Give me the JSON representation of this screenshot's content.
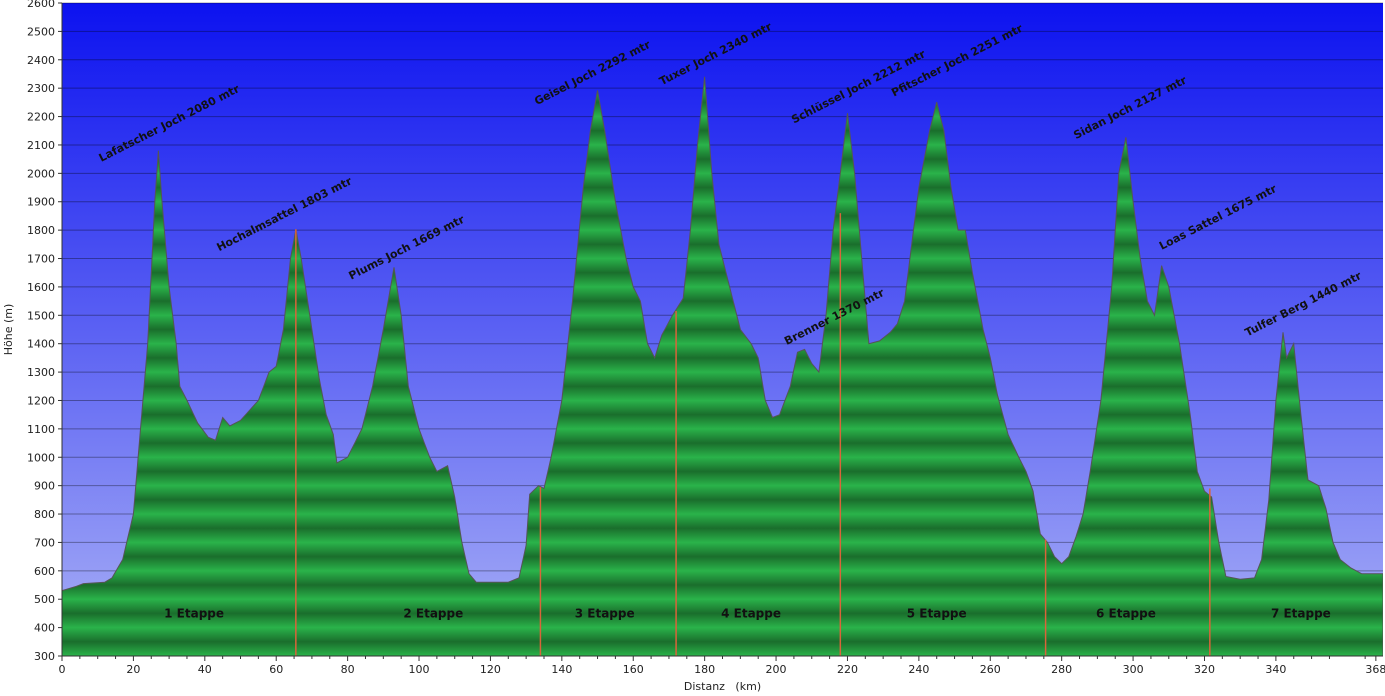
{
  "chart_data": {
    "type": "area",
    "xlabel": "Distanz   (km)",
    "ylabel": "Höhe (m)",
    "xlim": [
      0,
      370
    ],
    "ylim": [
      300,
      2600
    ],
    "xticks": [
      "0",
      "20",
      "40",
      "60",
      "80",
      "100",
      "120",
      "140",
      "160",
      "180",
      "200",
      "220",
      "240",
      "260",
      "280",
      "300",
      "320",
      "340",
      "368"
    ],
    "yticks": [
      "300",
      "400",
      "500",
      "600",
      "700",
      "800",
      "900",
      "1000",
      "1100",
      "1200",
      "1300",
      "1400",
      "1500",
      "1600",
      "1700",
      "1800",
      "1900",
      "2000",
      "2100",
      "2200",
      "2300",
      "2400",
      "2500",
      "2600"
    ],
    "grid": true,
    "profile": [
      [
        0,
        530
      ],
      [
        4,
        545
      ],
      [
        6,
        555
      ],
      [
        12,
        560
      ],
      [
        14,
        575
      ],
      [
        17,
        640
      ],
      [
        20,
        800
      ],
      [
        22,
        1100
      ],
      [
        24,
        1400
      ],
      [
        25,
        1650
      ],
      [
        26,
        1900
      ],
      [
        27,
        2080
      ],
      [
        28,
        1900
      ],
      [
        30,
        1600
      ],
      [
        32,
        1400
      ],
      [
        33,
        1250
      ],
      [
        35,
        1200
      ],
      [
        38,
        1120
      ],
      [
        41,
        1070
      ],
      [
        43,
        1060
      ],
      [
        45,
        1140
      ],
      [
        47,
        1110
      ],
      [
        50,
        1130
      ],
      [
        55,
        1200
      ],
      [
        58,
        1300
      ],
      [
        60,
        1320
      ],
      [
        62,
        1450
      ],
      [
        64,
        1700
      ],
      [
        65.5,
        1803
      ],
      [
        67,
        1700
      ],
      [
        70,
        1450
      ],
      [
        72,
        1280
      ],
      [
        74,
        1150
      ],
      [
        76,
        1080
      ],
      [
        77,
        980
      ],
      [
        80,
        1000
      ],
      [
        84,
        1100
      ],
      [
        87,
        1250
      ],
      [
        90,
        1450
      ],
      [
        93,
        1669
      ],
      [
        95,
        1500
      ],
      [
        97,
        1250
      ],
      [
        100,
        1100
      ],
      [
        103,
        1000
      ],
      [
        105,
        950
      ],
      [
        108,
        970
      ],
      [
        110,
        860
      ],
      [
        112,
        700
      ],
      [
        114,
        590
      ],
      [
        116,
        560
      ],
      [
        125,
        560
      ],
      [
        128,
        575
      ],
      [
        130,
        690
      ],
      [
        131,
        870
      ],
      [
        133.5,
        900
      ],
      [
        135,
        890
      ],
      [
        137,
        1000
      ],
      [
        140,
        1200
      ],
      [
        143,
        1550
      ],
      [
        146,
        1950
      ],
      [
        148,
        2150
      ],
      [
        150,
        2292
      ],
      [
        152,
        2150
      ],
      [
        155,
        1900
      ],
      [
        158,
        1700
      ],
      [
        160,
        1600
      ],
      [
        162,
        1550
      ],
      [
        164,
        1400
      ],
      [
        166,
        1350
      ],
      [
        168,
        1430
      ],
      [
        171,
        1500
      ],
      [
        172,
        1520
      ],
      [
        174,
        1560
      ],
      [
        176,
        1800
      ],
      [
        178,
        2100
      ],
      [
        180,
        2340
      ],
      [
        182,
        2000
      ],
      [
        184,
        1750
      ],
      [
        187,
        1600
      ],
      [
        190,
        1450
      ],
      [
        193,
        1400
      ],
      [
        195,
        1350
      ],
      [
        197,
        1200
      ],
      [
        199,
        1140
      ],
      [
        201,
        1150
      ],
      [
        204,
        1250
      ],
      [
        206,
        1370
      ],
      [
        208,
        1380
      ],
      [
        210,
        1330
      ],
      [
        212,
        1300
      ],
      [
        214,
        1500
      ],
      [
        216,
        1800
      ],
      [
        218,
        2000
      ],
      [
        220,
        2212
      ],
      [
        222,
        2000
      ],
      [
        224,
        1700
      ],
      [
        226,
        1400
      ],
      [
        229,
        1410
      ],
      [
        232,
        1440
      ],
      [
        234,
        1470
      ],
      [
        236,
        1550
      ],
      [
        238,
        1750
      ],
      [
        240,
        1950
      ],
      [
        243,
        2150
      ],
      [
        245,
        2251
      ],
      [
        247,
        2150
      ],
      [
        249,
        1950
      ],
      [
        251,
        1800
      ],
      [
        253,
        1800
      ],
      [
        255,
        1650
      ],
      [
        258,
        1450
      ],
      [
        260,
        1350
      ],
      [
        262,
        1220
      ],
      [
        265,
        1080
      ],
      [
        268,
        1000
      ],
      [
        270,
        950
      ],
      [
        272,
        880
      ],
      [
        274,
        730
      ],
      [
        276,
        700
      ],
      [
        278,
        650
      ],
      [
        280,
        625
      ],
      [
        282,
        650
      ],
      [
        284,
        720
      ],
      [
        286,
        800
      ],
      [
        288,
        950
      ],
      [
        291,
        1200
      ],
      [
        294,
        1600
      ],
      [
        296,
        2000
      ],
      [
        298,
        2127
      ],
      [
        300,
        1900
      ],
      [
        302,
        1700
      ],
      [
        304,
        1550
      ],
      [
        306,
        1500
      ],
      [
        308,
        1675
      ],
      [
        310,
        1600
      ],
      [
        313,
        1400
      ],
      [
        316,
        1150
      ],
      [
        318,
        950
      ],
      [
        320,
        880
      ],
      [
        322,
        860
      ],
      [
        324,
        700
      ],
      [
        326,
        580
      ],
      [
        330,
        570
      ],
      [
        334,
        575
      ],
      [
        336,
        640
      ],
      [
        338,
        850
      ],
      [
        340,
        1200
      ],
      [
        342,
        1440
      ],
      [
        343,
        1350
      ],
      [
        345,
        1400
      ],
      [
        347,
        1150
      ],
      [
        349,
        920
      ],
      [
        352,
        900
      ],
      [
        354,
        820
      ],
      [
        356,
        700
      ],
      [
        358,
        640
      ],
      [
        361,
        610
      ],
      [
        364,
        590
      ],
      [
        368,
        590
      ],
      [
        370,
        590
      ]
    ],
    "stage_boundaries": [
      {
        "x": 65.5,
        "y": 1803
      },
      {
        "x": 134,
        "y": 895
      },
      {
        "x": 172,
        "y": 1515
      },
      {
        "x": 218,
        "y": 1860
      },
      {
        "x": 275.5,
        "y": 710
      },
      {
        "x": 321.5,
        "y": 890
      }
    ],
    "stages": [
      {
        "label": "1 Etappe",
        "x": 37
      },
      {
        "label": "2 Etappe",
        "x": 104
      },
      {
        "label": "3 Etappe",
        "x": 152
      },
      {
        "label": "4 Etappe",
        "x": 193
      },
      {
        "label": "5 Etappe",
        "x": 245
      },
      {
        "label": "6 Etappe",
        "x": 298
      },
      {
        "label": "7 Etappe",
        "x": 347
      }
    ],
    "peak_labels": [
      {
        "text": "Lafatscher Joch 2080 mtr",
        "x": 11,
        "y": 2040
      },
      {
        "text": "Hochalmsattel 1803 mtr",
        "x": 44,
        "y": 1725
      },
      {
        "text": "Plums Joch 1669 mtr",
        "x": 81,
        "y": 1625
      },
      {
        "text": "Geisel Joch 2292 mtr",
        "x": 133,
        "y": 2240
      },
      {
        "text": "Tuxer Joch 2340 mtr",
        "x": 168,
        "y": 2310
      },
      {
        "text": "Schlüssel Joch 2212 mtr",
        "x": 205,
        "y": 2175
      },
      {
        "text": "Pfitscher Joch 2251 mtr",
        "x": 233,
        "y": 2270
      },
      {
        "text": "Brenner 1370 mtr",
        "x": 203,
        "y": 1395
      },
      {
        "text": "Sidan Joch 2127 mtr",
        "x": 284,
        "y": 2120
      },
      {
        "text": "Loas Sattel 1675 mtr",
        "x": 308,
        "y": 1730
      },
      {
        "text": "Tulfer Berg 1440 mtr",
        "x": 332,
        "y": 1425
      }
    ],
    "colors": {
      "sky_top": "#0c12f0",
      "sky_bottom": "#a9b0f6",
      "area_light": "#2ab34a",
      "area_dark": "#1a6e2c",
      "outline": "#555555",
      "stage_line": "#d9643a"
    }
  }
}
